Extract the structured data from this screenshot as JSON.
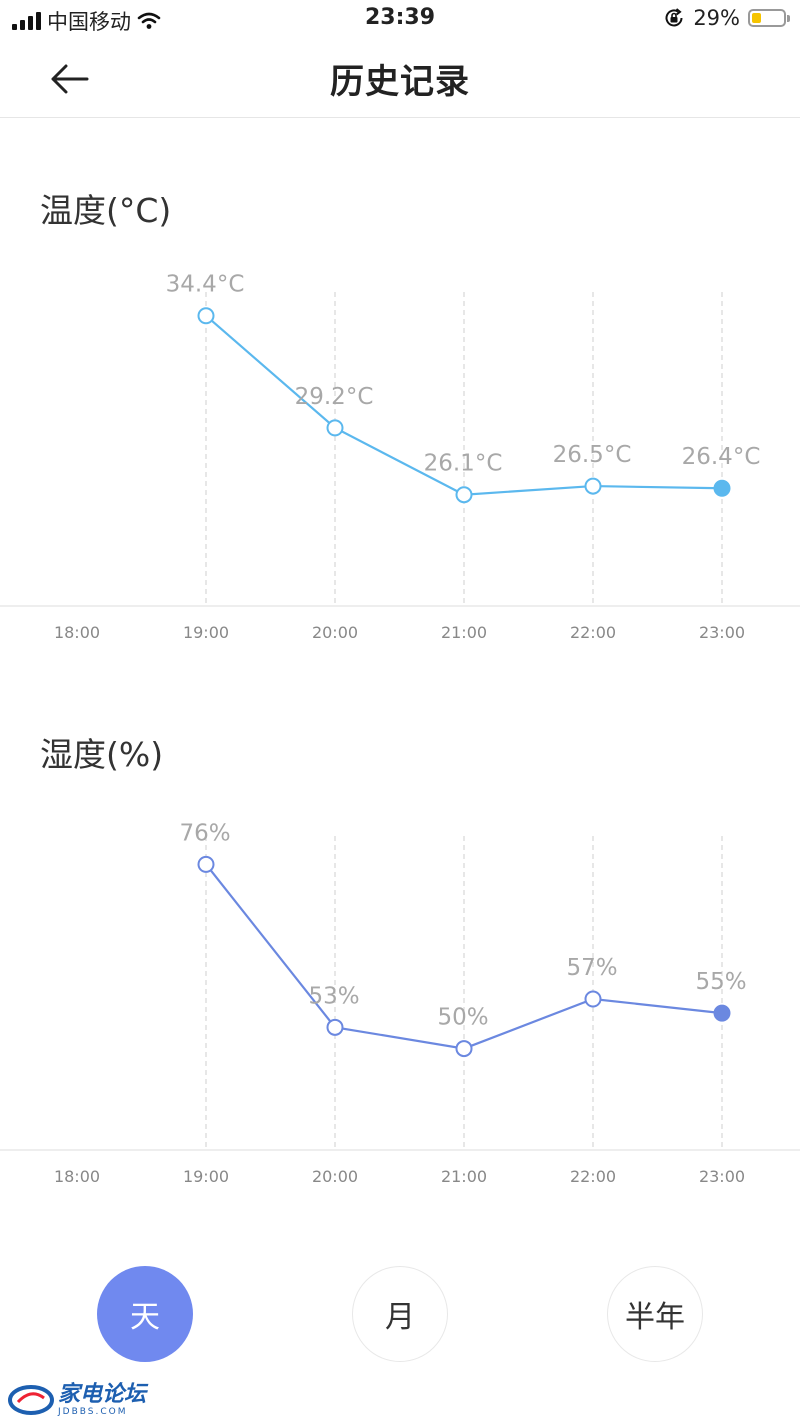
{
  "status_bar": {
    "carrier": "中国移动",
    "time": "23:39",
    "battery_percent": "29%",
    "battery_level": 0.29
  },
  "nav": {
    "title": "历史记录"
  },
  "temperature": {
    "title": "温度(°C)"
  },
  "humidity": {
    "title": "湿度(%)"
  },
  "chart_data": [
    {
      "type": "line",
      "title": "温度(°C)",
      "categories": [
        "18:00",
        "19:00",
        "20:00",
        "21:00",
        "22:00",
        "23:00"
      ],
      "x": [
        "19:00",
        "20:00",
        "21:00",
        "22:00",
        "23:00"
      ],
      "values": [
        34.4,
        29.2,
        26.1,
        26.5,
        26.4
      ],
      "labels": [
        "34.4°C",
        "29.2°C",
        "26.1°C",
        "26.5°C",
        "26.4°C"
      ],
      "ylim": [
        24,
        35.5
      ],
      "grid": true,
      "color": "#5bb8ee"
    },
    {
      "type": "line",
      "title": "湿度(%)",
      "categories": [
        "18:00",
        "19:00",
        "20:00",
        "21:00",
        "22:00",
        "23:00"
      ],
      "x": [
        "19:00",
        "20:00",
        "21:00",
        "22:00",
        "23:00"
      ],
      "values": [
        76,
        53,
        50,
        57,
        55
      ],
      "labels": [
        "76%",
        "53%",
        "50%",
        "57%",
        "55%"
      ],
      "ylim": [
        45,
        80
      ],
      "grid": true,
      "color": "#6b88e0"
    }
  ],
  "period_tabs": [
    {
      "label": "天",
      "active": true
    },
    {
      "label": "月",
      "active": false
    },
    {
      "label": "半年",
      "active": false
    }
  ],
  "watermark": {
    "name": "家电论坛",
    "domain": "JDBBS.COM"
  }
}
